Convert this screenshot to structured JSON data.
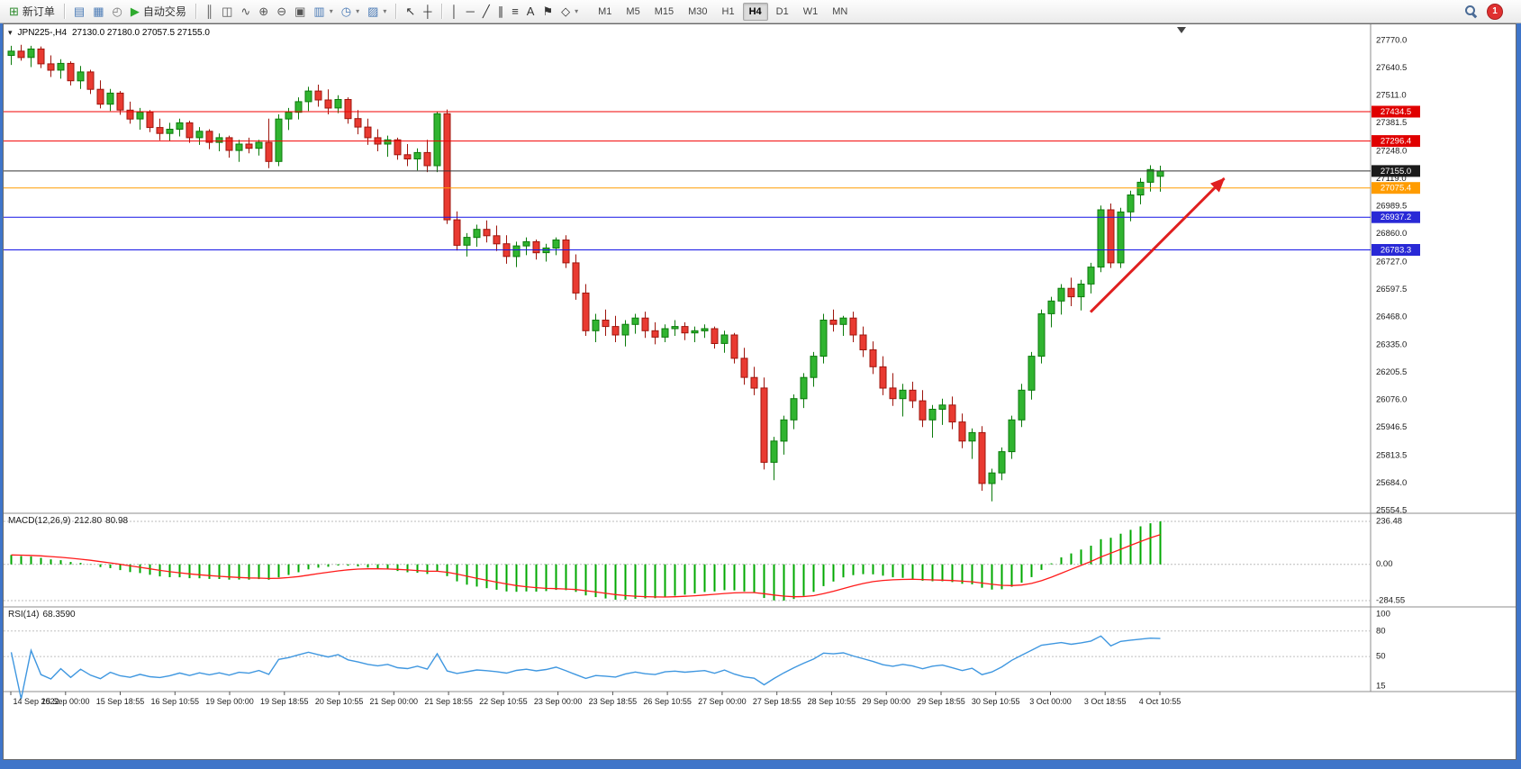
{
  "window": {
    "frame_color": "#3f75c9",
    "toolbar_bg": "#ebebeb"
  },
  "toolbar": {
    "notification_count": "1",
    "items": [
      {
        "name": "new-order-button",
        "type": "button",
        "glyph": "⊞",
        "glyph_color": "#2e8b2e",
        "label": "新订单"
      },
      {
        "name": "separator",
        "type": "sep"
      },
      {
        "name": "market-depth-icon",
        "type": "icon",
        "glyph": "▤",
        "glyph_color": "#4a7ab5"
      },
      {
        "name": "chart-window-icon",
        "type": "icon",
        "glyph": "▦",
        "glyph_color": "#4a7ab5"
      },
      {
        "name": "strategy-tester-icon",
        "type": "icon",
        "glyph": "◴",
        "glyph_color": "#777777"
      },
      {
        "name": "algo-trading-button",
        "type": "button",
        "glyph": "▶",
        "glyph_color": "#2eaa2e",
        "label": "自动交易"
      },
      {
        "name": "separator",
        "type": "sep"
      },
      {
        "name": "bar-chart-icon",
        "type": "icon",
        "glyph": "║",
        "glyph_color": "#555555"
      },
      {
        "name": "candlestick-chart-icon",
        "type": "icon",
        "glyph": "◫",
        "glyph_color": "#555555"
      },
      {
        "name": "line-chart-icon",
        "type": "icon",
        "glyph": "∿",
        "glyph_color": "#555555"
      },
      {
        "name": "zoom-in-icon",
        "type": "icon",
        "glyph": "⊕",
        "glyph_color": "#555555"
      },
      {
        "name": "zoom-out-icon",
        "type": "icon",
        "glyph": "⊖",
        "glyph_color": "#555555"
      },
      {
        "name": "tile-windows-icon",
        "type": "icon",
        "glyph": "▣",
        "glyph_color": "#555555"
      },
      {
        "name": "new-chart-dropdown",
        "type": "dropdown",
        "glyph": "▥",
        "glyph_color": "#4a7ab5"
      },
      {
        "name": "period-dropdown",
        "type": "dropdown",
        "glyph": "◷",
        "glyph_color": "#4a7ab5"
      },
      {
        "name": "template-dropdown",
        "type": "dropdown",
        "glyph": "▨",
        "glyph_color": "#4a7ab5"
      },
      {
        "name": "separator",
        "type": "sep"
      },
      {
        "name": "cursor-icon",
        "type": "icon",
        "glyph": "↖",
        "glyph_color": "#333333"
      },
      {
        "name": "crosshair-icon",
        "type": "icon",
        "glyph": "┼",
        "glyph_color": "#333333"
      },
      {
        "name": "separator",
        "type": "sep"
      },
      {
        "name": "vertical-line-icon",
        "type": "icon",
        "glyph": "│",
        "glyph_color": "#333333"
      },
      {
        "name": "horizontal-line-icon",
        "type": "icon",
        "glyph": "─",
        "glyph_color": "#333333"
      },
      {
        "name": "trendline-icon",
        "type": "icon",
        "glyph": "╱",
        "glyph_color": "#333333"
      },
      {
        "name": "equidistant-channel-icon",
        "type": "icon",
        "glyph": "∥",
        "glyph_color": "#333333"
      },
      {
        "name": "fibonacci-icon",
        "type": "icon",
        "glyph": "≡",
        "glyph_color": "#333333"
      },
      {
        "name": "text-icon",
        "type": "icon",
        "glyph": "A",
        "glyph_color": "#333333"
      },
      {
        "name": "text-label-icon",
        "type": "icon",
        "glyph": "⚑",
        "glyph_color": "#333333"
      },
      {
        "name": "shapes-dropdown",
        "type": "dropdown",
        "glyph": "◇",
        "glyph_color": "#333333"
      }
    ],
    "timeframes": {
      "options": [
        "M1",
        "M5",
        "M15",
        "M30",
        "H1",
        "H4",
        "D1",
        "W1",
        "MN"
      ],
      "active": "H4"
    }
  },
  "chart": {
    "collapse_glyph": "▾",
    "symbol_period": "JPN225-,H4",
    "ohlc_text": "27130.0 27180.0 27057.5 27155.0"
  },
  "chart_data": {
    "type": "candlestick",
    "symbol": "JPN225-",
    "timeframe": "H4",
    "price_axis": {
      "max": 27770.0,
      "min": 25554.5,
      "labels": [
        "27770.0",
        "27640.5",
        "27511.0",
        "27381.5",
        "27248.0",
        "27119.0",
        "26989.5",
        "26860.0",
        "26727.0",
        "26597.5",
        "26468.0",
        "26335.0",
        "26205.5",
        "26076.0",
        "25946.5",
        "25813.5",
        "25684.0",
        "25554.5"
      ]
    },
    "levels": [
      {
        "price": 27434.5,
        "label": "27434.5",
        "color": "#f20000",
        "badge_bg": "#e00000"
      },
      {
        "price": 27296.4,
        "label": "27296.4",
        "color": "#f20000",
        "badge_bg": "#e00000"
      },
      {
        "price": 27155.0,
        "label": "27155.0",
        "color": "#333333",
        "badge_bg": "#1a1a1a"
      },
      {
        "price": 27075.4,
        "label": "27075.4",
        "color": "#ff9c00",
        "badge_bg": "#ff9c00"
      },
      {
        "price": 26937.2,
        "label": "26937.2",
        "color": "#1414e6",
        "badge_bg": "#2929d6"
      },
      {
        "price": 26783.3,
        "label": "26783.3",
        "color": "#1414e6",
        "badge_bg": "#2929d6"
      }
    ],
    "colors": {
      "up": "#30b430",
      "up_border": "#0b7a0b",
      "down": "#e93a31",
      "down_border": "#9e150d"
    },
    "arrow": {
      "from_bar": 109,
      "from_price": 26490,
      "to_bar": 122.5,
      "to_price": 27120,
      "color": "#e02020"
    },
    "candles": [
      [
        27700,
        27745,
        27655,
        27720
      ],
      [
        27720,
        27750,
        27675,
        27690
      ],
      [
        27690,
        27745,
        27645,
        27730
      ],
      [
        27730,
        27742,
        27640,
        27660
      ],
      [
        27660,
        27700,
        27598,
        27630
      ],
      [
        27630,
        27682,
        27590,
        27662
      ],
      [
        27662,
        27672,
        27558,
        27580
      ],
      [
        27580,
        27650,
        27542,
        27622
      ],
      [
        27622,
        27632,
        27518,
        27540
      ],
      [
        27540,
        27582,
        27450,
        27470
      ],
      [
        27470,
        27542,
        27438,
        27522
      ],
      [
        27522,
        27532,
        27420,
        27442
      ],
      [
        27442,
        27482,
        27378,
        27400
      ],
      [
        27400,
        27452,
        27350,
        27432
      ],
      [
        27432,
        27442,
        27338,
        27360
      ],
      [
        27360,
        27402,
        27300,
        27332
      ],
      [
        27332,
        27382,
        27298,
        27352
      ],
      [
        27352,
        27402,
        27318,
        27382
      ],
      [
        27382,
        27392,
        27288,
        27312
      ],
      [
        27312,
        27362,
        27278,
        27342
      ],
      [
        27342,
        27352,
        27258,
        27290
      ],
      [
        27290,
        27332,
        27248,
        27312
      ],
      [
        27312,
        27322,
        27218,
        27252
      ],
      [
        27252,
        27302,
        27198,
        27282
      ],
      [
        27282,
        27312,
        27238,
        27262
      ],
      [
        27262,
        27302,
        27228,
        27290
      ],
      [
        27290,
        27402,
        27168,
        27200
      ],
      [
        27200,
        27422,
        27178,
        27400
      ],
      [
        27400,
        27452,
        27348,
        27432
      ],
      [
        27432,
        27502,
        27398,
        27482
      ],
      [
        27482,
        27552,
        27438,
        27532
      ],
      [
        27532,
        27562,
        27458,
        27490
      ],
      [
        27490,
        27540,
        27422,
        27452
      ],
      [
        27452,
        27512,
        27428,
        27492
      ],
      [
        27492,
        27502,
        27378,
        27402
      ],
      [
        27402,
        27442,
        27328,
        27362
      ],
      [
        27362,
        27402,
        27278,
        27312
      ],
      [
        27312,
        27352,
        27248,
        27282
      ],
      [
        27282,
        27322,
        27222,
        27302
      ],
      [
        27302,
        27312,
        27208,
        27232
      ],
      [
        27232,
        27282,
        27178,
        27212
      ],
      [
        27212,
        27262,
        27158,
        27242
      ],
      [
        27242,
        27302,
        27150,
        27180
      ],
      [
        27180,
        27435,
        27150,
        27425
      ],
      [
        27425,
        27445,
        26905,
        26925
      ],
      [
        26925,
        26965,
        26780,
        26805
      ],
      [
        26805,
        26862,
        26752,
        26842
      ],
      [
        26842,
        26902,
        26798,
        26880
      ],
      [
        26880,
        26922,
        26818,
        26850
      ],
      [
        26850,
        26898,
        26778,
        26812
      ],
      [
        26812,
        26852,
        26718,
        26752
      ],
      [
        26752,
        26822,
        26702,
        26802
      ],
      [
        26802,
        26842,
        26758,
        26822
      ],
      [
        26822,
        26832,
        26738,
        26770
      ],
      [
        26770,
        26812,
        26728,
        26792
      ],
      [
        26792,
        26842,
        26758,
        26830
      ],
      [
        26830,
        26852,
        26698,
        26722
      ],
      [
        26722,
        26762,
        26548,
        26580
      ],
      [
        26580,
        26622,
        26378,
        26402
      ],
      [
        26402,
        26482,
        26348,
        26452
      ],
      [
        26452,
        26502,
        26378,
        26422
      ],
      [
        26422,
        26472,
        26348,
        26382
      ],
      [
        26382,
        26452,
        26328,
        26432
      ],
      [
        26432,
        26482,
        26388,
        26462
      ],
      [
        26462,
        26492,
        26368,
        26402
      ],
      [
        26402,
        26442,
        26338,
        26372
      ],
      [
        26372,
        26432,
        26348,
        26412
      ],
      [
        26412,
        26452,
        26378,
        26422
      ],
      [
        26422,
        26442,
        26358,
        26392
      ],
      [
        26392,
        26422,
        26348,
        26402
      ],
      [
        26402,
        26432,
        26368,
        26412
      ],
      [
        26412,
        26422,
        26318,
        26342
      ],
      [
        26342,
        26402,
        26298,
        26382
      ],
      [
        26382,
        26392,
        26248,
        26272
      ],
      [
        26272,
        26322,
        26148,
        26182
      ],
      [
        26182,
        26232,
        26098,
        26132
      ],
      [
        26132,
        26182,
        25748,
        25782
      ],
      [
        25782,
        25902,
        25698,
        25882
      ],
      [
        25882,
        26002,
        25818,
        25982
      ],
      [
        25982,
        26102,
        25938,
        26082
      ],
      [
        26082,
        26202,
        26038,
        26182
      ],
      [
        26182,
        26302,
        26138,
        26282
      ],
      [
        26282,
        26482,
        26248,
        26452
      ],
      [
        26452,
        26502,
        26398,
        26432
      ],
      [
        26432,
        26472,
        26378,
        26462
      ],
      [
        26462,
        26492,
        26348,
        26382
      ],
      [
        26382,
        26422,
        26278,
        26312
      ],
      [
        26312,
        26352,
        26198,
        26232
      ],
      [
        26232,
        26282,
        26098,
        26132
      ],
      [
        26132,
        26202,
        26048,
        26082
      ],
      [
        26082,
        26152,
        25998,
        26122
      ],
      [
        26122,
        26162,
        26038,
        26072
      ],
      [
        26072,
        26122,
        25948,
        25982
      ],
      [
        25982,
        26052,
        25898,
        26032
      ],
      [
        26032,
        26082,
        25958,
        26052
      ],
      [
        26052,
        26092,
        25938,
        25972
      ],
      [
        25972,
        26012,
        25848,
        25882
      ],
      [
        25882,
        25942,
        25798,
        25922
      ],
      [
        25922,
        25952,
        25648,
        25682
      ],
      [
        25682,
        25752,
        25598,
        25732
      ],
      [
        25732,
        25852,
        25698,
        25832
      ],
      [
        25832,
        26002,
        25798,
        25982
      ],
      [
        25982,
        26152,
        25948,
        26122
      ],
      [
        26122,
        26302,
        26078,
        26282
      ],
      [
        26282,
        26502,
        26248,
        26482
      ],
      [
        26482,
        26562,
        26418,
        26542
      ],
      [
        26542,
        26622,
        26478,
        26602
      ],
      [
        26602,
        26652,
        26518,
        26562
      ],
      [
        26562,
        26642,
        26498,
        26622
      ],
      [
        26622,
        26722,
        26578,
        26702
      ],
      [
        26702,
        26992,
        26678,
        26972
      ],
      [
        26972,
        27002,
        26698,
        26722
      ],
      [
        26722,
        26982,
        26698,
        26962
      ],
      [
        26962,
        27062,
        26918,
        27042
      ],
      [
        27042,
        27122,
        26998,
        27102
      ],
      [
        27102,
        27182,
        27058,
        27162
      ],
      [
        27130,
        27180,
        27057.5,
        27155
      ]
    ],
    "macd": {
      "label_name": "MACD(12,26,9)",
      "value_main": "212.80",
      "value_signal": "80.98",
      "params": [
        12,
        26,
        9
      ],
      "axis_labels": [
        "236.48",
        "0.00",
        "-284.55"
      ],
      "histogram_color": "#00a800",
      "signal_color": "#ff1a1a"
    },
    "rsi": {
      "label_name": "RSI(14)",
      "value": "68.3590",
      "period": 14,
      "axis_labels": [
        "100",
        "80",
        "50",
        "15"
      ],
      "level_lines": [
        80,
        50
      ],
      "line_color": "#3f97e0"
    },
    "time_labels": [
      "14 Sep 2022",
      "15 Sep 00:00",
      "15 Sep 18:55",
      "16 Sep 10:55",
      "19 Sep 00:00",
      "19 Sep 18:55",
      "20 Sep 10:55",
      "21 Sep 00:00",
      "21 Sep 18:55",
      "22 Sep 10:55",
      "23 Sep 00:00",
      "23 Sep 18:55",
      "26 Sep 10:55",
      "27 Sep 00:00",
      "27 Sep 18:55",
      "28 Sep 10:55",
      "29 Sep 00:00",
      "29 Sep 18:55",
      "30 Sep 10:55",
      "3 Oct 00:00",
      "3 Oct 18:55",
      "4 Oct 10:55"
    ]
  }
}
